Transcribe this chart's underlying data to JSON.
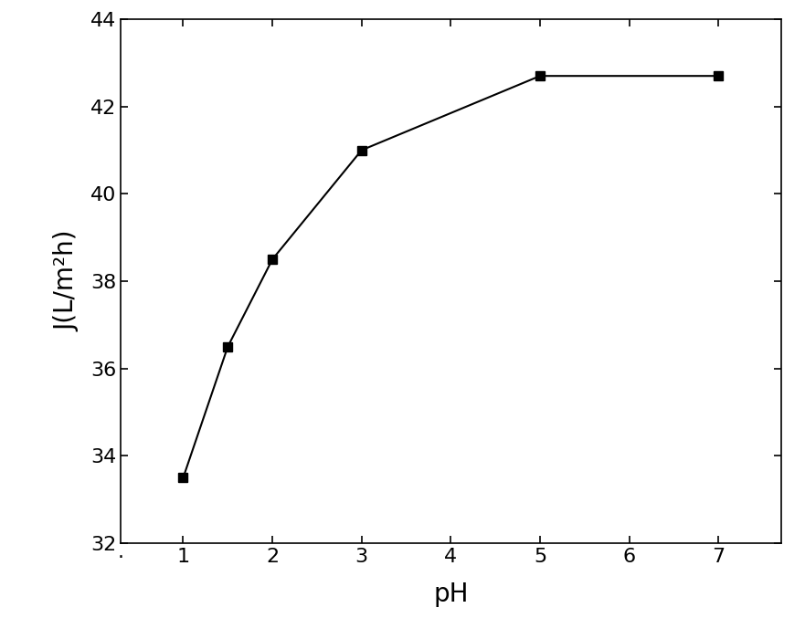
{
  "x": [
    1,
    1.5,
    2,
    3,
    5,
    7
  ],
  "y": [
    33.5,
    36.5,
    38.5,
    41.0,
    42.7,
    42.7
  ],
  "xlabel": "pH",
  "ylabel": "J(L/m²h)",
  "xlim": [
    0.3,
    7.7
  ],
  "ylim": [
    32,
    44
  ],
  "xticks": [
    1,
    2,
    3,
    4,
    5,
    6,
    7
  ],
  "yticks": [
    32,
    34,
    36,
    38,
    40,
    42,
    44
  ],
  "line_color": "#000000",
  "marker": "s",
  "marker_color": "#000000",
  "marker_size": 7,
  "linewidth": 1.5,
  "background_color": "#ffffff",
  "label_fontsize": 20,
  "tick_fontsize": 16,
  "dot_x": 0.3,
  "dot_label": "."
}
